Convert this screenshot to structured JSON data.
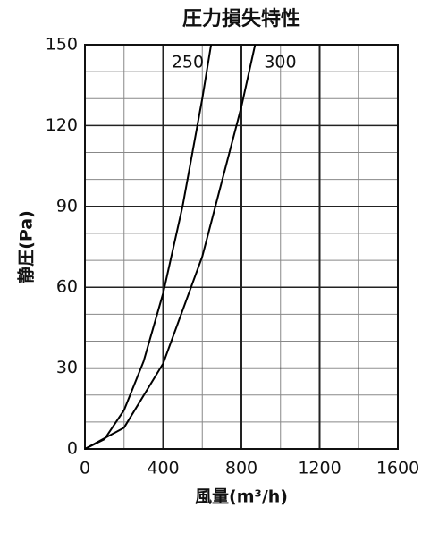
{
  "chart_data": {
    "type": "line",
    "title": "圧力損失特性",
    "x_label": "風量(m³/h)",
    "y_label": "静圧(Pa)",
    "xlim": [
      0,
      1600
    ],
    "xticks": [
      0,
      400,
      800,
      1200,
      1600
    ],
    "ylim": [
      0,
      150
    ],
    "yticks": [
      0,
      30,
      60,
      90,
      120,
      150
    ],
    "grid": true,
    "series": [
      {
        "name": "250",
        "color": "#000000",
        "x": [
          0,
          100,
          200,
          300,
          400,
          500,
          600,
          645
        ],
        "values": [
          0,
          3.6,
          14.4,
          32.5,
          57.8,
          90.3,
          130,
          150
        ]
      },
      {
        "name": "300",
        "color": "#000000",
        "x": [
          0,
          200,
          400,
          600,
          800,
          870
        ],
        "values": [
          0,
          7.9,
          31.7,
          71.4,
          127,
          150
        ]
      }
    ]
  }
}
